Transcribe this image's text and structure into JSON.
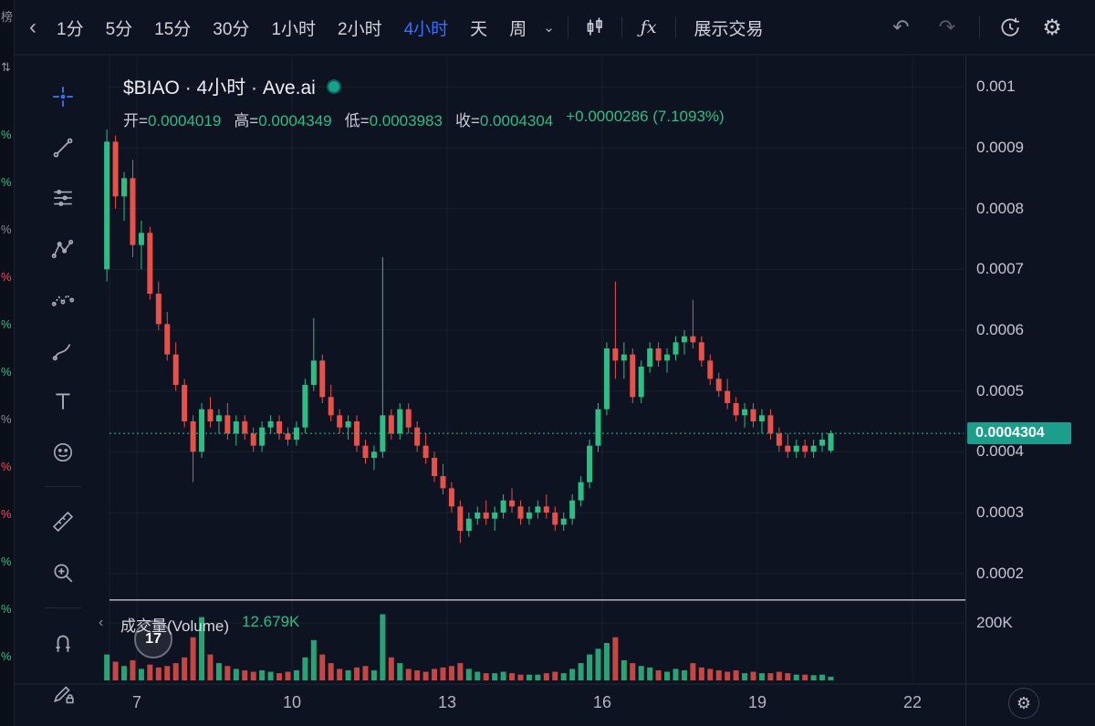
{
  "colors": {
    "up": "#2ebd85",
    "down": "#e8504a",
    "accent_blue": "#3b6eff",
    "label_bg": "#1d9e8c",
    "grid": "rgba(255,255,255,0.055)"
  },
  "icons": {
    "back": "‹",
    "chevron-down": "⌄",
    "undo": "↶",
    "redo": "↷",
    "gear": "⚙",
    "fx": "ƒx",
    "pane-collapse": "‹",
    "bottom-gear": "⚙",
    "percent": "%",
    "sort": "⇅"
  },
  "left_strip": {
    "header": "榜",
    "percent_char": "%",
    "percent_colors": [
      "up",
      "up",
      "muted",
      "down",
      "up",
      "up",
      "muted",
      "down",
      "down",
      "up",
      "up",
      "up"
    ]
  },
  "toolbar": {
    "timeframes": [
      {
        "label": "1分"
      },
      {
        "label": "5分"
      },
      {
        "label": "15分"
      },
      {
        "label": "30分"
      },
      {
        "label": "1小时"
      },
      {
        "label": "2小时"
      },
      {
        "label": "4小时",
        "active": true
      },
      {
        "label": "天"
      },
      {
        "label": "周"
      }
    ],
    "show_trade": "展示交易"
  },
  "legend": {
    "title": "$BIAO · 4小时 · Ave.ai",
    "o_label": "开=",
    "o": "0.0004019",
    "h_label": "高=",
    "h": "0.0004349",
    "l_label": "低=",
    "l": "0.0003983",
    "c_label": "收=",
    "c": "0.0004304",
    "change": "+0.0000286 (7.1093%)"
  },
  "price_axis": {
    "current": "0.0004304"
  },
  "volume_pane": {
    "label": "成交量(Volume)",
    "value": "12.679K",
    "badge": "17",
    "axis_tick": "200K",
    "axis_value": 200
  },
  "chart_data": {
    "type": "candlestick+volume",
    "title": "$BIAO · 4小时 · Ave.ai",
    "interval": "4小时",
    "ohlc_legend": {
      "open": 0.0004019,
      "high": 0.0004349,
      "low": 0.0003983,
      "close": 0.0004304,
      "change": 2.86e-05,
      "change_pct": "7.1093%"
    },
    "y_ticks": [
      0.001,
      0.0009,
      0.0008,
      0.0007,
      0.0006,
      0.0005,
      0.0004,
      0.0003,
      0.0002
    ],
    "x_ticks": [
      7,
      10,
      13,
      16,
      19,
      22
    ],
    "ylim": [
      0.000165,
      0.00105
    ],
    "volume_ylim_k": [
      0,
      260
    ],
    "volume_unit": "K",
    "x_start_day": 6.42,
    "x_step_days": 0.1666667,
    "current_price": 0.0004304,
    "candles_format": [
      "open",
      "high",
      "low",
      "close",
      "volume_k"
    ],
    "candles": [
      [
        0.0007,
        0.00093,
        0.00068,
        0.00091,
        90
      ],
      [
        0.00091,
        0.00092,
        0.0008,
        0.00082,
        65
      ],
      [
        0.00082,
        0.00086,
        0.00078,
        0.00085,
        50
      ],
      [
        0.00085,
        0.00088,
        0.00072,
        0.00074,
        70
      ],
      [
        0.00074,
        0.00078,
        0.0007,
        0.00076,
        40
      ],
      [
        0.00076,
        0.00077,
        0.00065,
        0.00066,
        55
      ],
      [
        0.00066,
        0.00068,
        0.0006,
        0.00061,
        45
      ],
      [
        0.00061,
        0.00063,
        0.00055,
        0.00056,
        50
      ],
      [
        0.00056,
        0.00058,
        0.0005,
        0.00051,
        60
      ],
      [
        0.00051,
        0.00052,
        0.00044,
        0.00045,
        80
      ],
      [
        0.00045,
        0.00046,
        0.00035,
        0.0004,
        150
      ],
      [
        0.0004,
        0.00048,
        0.00039,
        0.00047,
        220
      ],
      [
        0.00047,
        0.00049,
        0.00044,
        0.00045,
        90
      ],
      [
        0.00045,
        0.00047,
        0.00043,
        0.00046,
        60
      ],
      [
        0.00046,
        0.00048,
        0.00042,
        0.00043,
        50
      ],
      [
        0.00043,
        0.00046,
        0.00041,
        0.00045,
        40
      ],
      [
        0.00045,
        0.00046,
        0.00042,
        0.00043,
        35
      ],
      [
        0.00043,
        0.00044,
        0.0004,
        0.00041,
        30
      ],
      [
        0.00041,
        0.00045,
        0.0004,
        0.00044,
        35
      ],
      [
        0.00044,
        0.00046,
        0.00043,
        0.00045,
        30
      ],
      [
        0.00045,
        0.00046,
        0.00042,
        0.00043,
        25
      ],
      [
        0.00043,
        0.00044,
        0.00041,
        0.00042,
        30
      ],
      [
        0.00042,
        0.00045,
        0.00041,
        0.00044,
        35
      ],
      [
        0.00044,
        0.00052,
        0.00043,
        0.00051,
        80
      ],
      [
        0.00051,
        0.00062,
        0.0005,
        0.00055,
        140
      ],
      [
        0.00055,
        0.00056,
        0.00048,
        0.00049,
        90
      ],
      [
        0.00049,
        0.00051,
        0.00045,
        0.00046,
        60
      ],
      [
        0.00046,
        0.00047,
        0.00043,
        0.00044,
        40
      ],
      [
        0.00044,
        0.00046,
        0.00042,
        0.00045,
        35
      ],
      [
        0.00045,
        0.00046,
        0.0004,
        0.00041,
        45
      ],
      [
        0.00041,
        0.00042,
        0.00038,
        0.00039,
        50
      ],
      [
        0.00039,
        0.00041,
        0.00037,
        0.0004,
        35
      ],
      [
        0.0004,
        0.00072,
        0.00039,
        0.00046,
        230
      ],
      [
        0.00046,
        0.00047,
        0.00042,
        0.00043,
        80
      ],
      [
        0.00043,
        0.00048,
        0.00042,
        0.00047,
        60
      ],
      [
        0.00047,
        0.00048,
        0.00043,
        0.00044,
        40
      ],
      [
        0.00044,
        0.00045,
        0.0004,
        0.00041,
        35
      ],
      [
        0.00041,
        0.00043,
        0.00038,
        0.00039,
        30
      ],
      [
        0.00039,
        0.0004,
        0.00035,
        0.00036,
        40
      ],
      [
        0.00036,
        0.00038,
        0.00033,
        0.00034,
        45
      ],
      [
        0.00034,
        0.00035,
        0.0003,
        0.00031,
        50
      ],
      [
        0.00031,
        0.00032,
        0.00025,
        0.00027,
        60
      ],
      [
        0.00027,
        0.0003,
        0.00026,
        0.00029,
        40
      ],
      [
        0.00029,
        0.00031,
        0.00028,
        0.0003,
        30
      ],
      [
        0.0003,
        0.00032,
        0.00028,
        0.00029,
        25
      ],
      [
        0.00029,
        0.00031,
        0.00027,
        0.0003,
        25
      ],
      [
        0.0003,
        0.00033,
        0.00029,
        0.00032,
        30
      ],
      [
        0.00032,
        0.00034,
        0.0003,
        0.00031,
        25
      ],
      [
        0.00031,
        0.00032,
        0.00028,
        0.00029,
        20
      ],
      [
        0.00029,
        0.00031,
        0.00028,
        0.0003,
        20
      ],
      [
        0.0003,
        0.00032,
        0.00029,
        0.00031,
        20
      ],
      [
        0.00031,
        0.00033,
        0.00029,
        0.0003,
        25
      ],
      [
        0.0003,
        0.00031,
        0.00027,
        0.00028,
        30
      ],
      [
        0.00028,
        0.0003,
        0.00027,
        0.00029,
        25
      ],
      [
        0.00029,
        0.00033,
        0.00028,
        0.00032,
        40
      ],
      [
        0.00032,
        0.00036,
        0.00031,
        0.00035,
        60
      ],
      [
        0.00035,
        0.00042,
        0.00034,
        0.00041,
        90
      ],
      [
        0.00041,
        0.00048,
        0.0004,
        0.00047,
        110
      ],
      [
        0.00047,
        0.00058,
        0.00046,
        0.00057,
        130
      ],
      [
        0.00057,
        0.00068,
        0.00052,
        0.00055,
        150
      ],
      [
        0.00055,
        0.00058,
        0.00052,
        0.00056,
        70
      ],
      [
        0.00056,
        0.00057,
        0.00048,
        0.00049,
        60
      ],
      [
        0.00049,
        0.00055,
        0.00048,
        0.00054,
        50
      ],
      [
        0.00054,
        0.00058,
        0.00053,
        0.00057,
        45
      ],
      [
        0.00057,
        0.00058,
        0.00054,
        0.00055,
        35
      ],
      [
        0.00055,
        0.00057,
        0.00053,
        0.00056,
        30
      ],
      [
        0.00056,
        0.00059,
        0.00055,
        0.00058,
        40
      ],
      [
        0.00058,
        0.0006,
        0.00056,
        0.00059,
        35
      ],
      [
        0.00059,
        0.00065,
        0.00057,
        0.00058,
        60
      ],
      [
        0.00058,
        0.00059,
        0.00054,
        0.00055,
        45
      ],
      [
        0.00055,
        0.00056,
        0.00051,
        0.00052,
        40
      ],
      [
        0.00052,
        0.00053,
        0.00049,
        0.0005,
        35
      ],
      [
        0.0005,
        0.00052,
        0.00047,
        0.00048,
        30
      ],
      [
        0.00048,
        0.00049,
        0.00045,
        0.00046,
        35
      ],
      [
        0.00046,
        0.00048,
        0.00044,
        0.00047,
        25
      ],
      [
        0.00047,
        0.00048,
        0.00044,
        0.00045,
        30
      ],
      [
        0.00045,
        0.00047,
        0.00043,
        0.00046,
        25
      ],
      [
        0.00046,
        0.00047,
        0.00042,
        0.00043,
        25
      ],
      [
        0.00043,
        0.00044,
        0.0004,
        0.00041,
        30
      ],
      [
        0.00041,
        0.00043,
        0.00039,
        0.0004,
        25
      ],
      [
        0.0004,
        0.00042,
        0.00039,
        0.00041,
        20
      ],
      [
        0.00041,
        0.00042,
        0.00039,
        0.0004,
        20
      ],
      [
        0.0004,
        0.00042,
        0.00039,
        0.00041,
        18
      ],
      [
        0.00041,
        0.00043,
        0.0004,
        0.00042,
        20
      ],
      [
        0.0004019,
        0.0004349,
        0.0003983,
        0.0004304,
        12.679
      ]
    ]
  },
  "time_axis": {
    "ticks": [
      7,
      10,
      13,
      16,
      19,
      22
    ]
  }
}
